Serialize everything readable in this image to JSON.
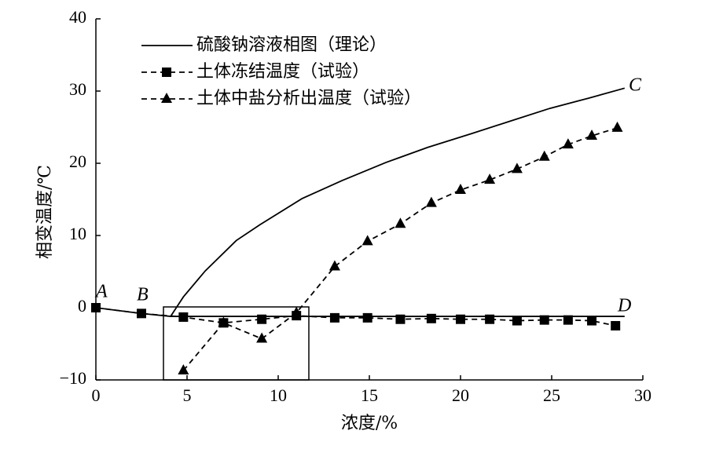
{
  "chart_data": {
    "type": "line",
    "x_label": "浓度/%",
    "y_label": "相变温度/℃",
    "xlim": [
      0,
      30
    ],
    "xticks": [
      0,
      5,
      10,
      15,
      20,
      25,
      30
    ],
    "ylim": [
      -10,
      40
    ],
    "yticks": [
      {
        "value": -10,
        "label": "−10"
      },
      0,
      10,
      20,
      30,
      40
    ],
    "annotations": [
      "A",
      "B",
      "C",
      "D"
    ],
    "series": [
      {
        "name": "硫酸钠溶液相图（理论）",
        "color": "#000000",
        "dash": false,
        "marker": "none",
        "x": [
          0,
          2.5,
          4.1,
          4.8,
          6.0,
          7.7,
          9.0,
          11.3,
          13.5,
          15.9,
          18.2,
          20.6,
          22.8,
          24.9,
          27.0,
          29.0,
          null,
          4.1,
          29.0
        ],
        "values": [
          0,
          -0.8,
          -1.2,
          1.5,
          5.1,
          9.3,
          11.5,
          15.1,
          17.6,
          20.1,
          22.2,
          24.1,
          25.9,
          27.6,
          29.0,
          30.4,
          null,
          -1.2,
          -1.2
        ]
      },
      {
        "name": "土体冻结温度（试验）",
        "color": "#000000",
        "dash": true,
        "marker": "square",
        "x": [
          0,
          2.5,
          4.8,
          7.0,
          9.1,
          11.0,
          13.1,
          14.9,
          16.7,
          18.4,
          20.0,
          21.6,
          23.1,
          24.6,
          25.9,
          27.2,
          28.5
        ],
        "values": [
          0,
          -0.8,
          -1.3,
          -2.1,
          -1.6,
          -1.1,
          -1.4,
          -1.4,
          -1.6,
          -1.5,
          -1.6,
          -1.6,
          -1.8,
          -1.7,
          -1.7,
          -1.8,
          -2.5
        ]
      },
      {
        "name": "土体中盐分析出温度（试验）",
        "color": "#000000",
        "dash": true,
        "marker": "triangle",
        "x": [
          4.8,
          7.0,
          9.1,
          11.0,
          13.1,
          14.9,
          16.7,
          18.4,
          20.0,
          21.6,
          23.1,
          24.6,
          25.9,
          27.2,
          28.6
        ],
        "values": [
          -8.7,
          -2.1,
          -4.3,
          -0.7,
          5.7,
          9.2,
          11.6,
          14.5,
          16.3,
          17.7,
          19.2,
          20.9,
          22.6,
          23.8,
          24.9
        ]
      }
    ]
  }
}
